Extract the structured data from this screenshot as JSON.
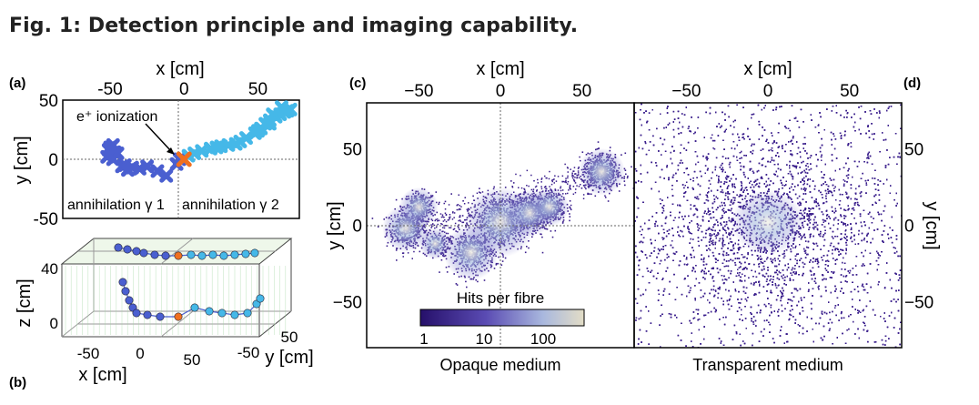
{
  "figure": {
    "title": "Fig. 1: Detection principle and imaging capability.",
    "colors": {
      "track_blue": "#4a5fd0",
      "track_cyan": "#45b8e8",
      "vertex": "#f07020",
      "hits": "#3a1e8c",
      "box_green": "#7fc07f"
    }
  },
  "panel_labels": {
    "a": "(a)",
    "b": "(b)",
    "c": "(c)",
    "d": "(d)"
  },
  "annotations": {
    "ionization": "e⁺ ionization",
    "gamma1": "annihilation γ 1",
    "gamma2": "annihilation γ 2"
  },
  "colorbar": {
    "title": "Hits per fibre",
    "ticks": [
      "1",
      "10",
      "100"
    ],
    "colors": [
      "#26106a",
      "#5a4bb3",
      "#a9b8de",
      "#e3ddc6"
    ]
  },
  "chart_data": [
    {
      "id": "a",
      "type": "scatter",
      "xlabel": "x [cm]",
      "ylabel": "y [cm]",
      "xticks": [
        "-50",
        "0",
        "50"
      ],
      "yticks": [
        "50",
        "0",
        "-50"
      ],
      "xtick_values": [
        -50,
        0,
        50
      ],
      "ytick_values": [
        50,
        0,
        -50
      ],
      "xlim": [
        -82,
        78
      ],
      "ylim": [
        -50,
        50
      ],
      "series": [
        {
          "color": "#4a5fd0",
          "x": [
            -48,
            -50,
            -51,
            -47,
            -45,
            -52,
            -48,
            -40,
            -35,
            -30,
            -25,
            -18,
            -12,
            -5,
            -3,
            -42,
            -38
          ],
          "y": [
            12,
            10,
            8,
            6,
            5,
            2,
            0,
            -5,
            -7,
            -8,
            -6,
            -10,
            -14,
            -4,
            0,
            -6,
            -9
          ]
        },
        {
          "color": "#45b8e8",
          "x": [
            3,
            7,
            12,
            18,
            22,
            25,
            30,
            35,
            38,
            42,
            48,
            52,
            55,
            58,
            62,
            65,
            68,
            70,
            72,
            66,
            60,
            58,
            50
          ],
          "y": [
            3,
            5,
            7,
            9,
            10,
            11,
            12,
            13,
            15,
            18,
            22,
            26,
            30,
            33,
            36,
            38,
            40,
            41,
            42,
            44,
            38,
            30,
            24
          ]
        },
        {
          "color": "#f07020",
          "x": [
            0
          ],
          "y": [
            0
          ]
        }
      ]
    },
    {
      "id": "b",
      "type": "scatter",
      "xlabel": "x [cm]",
      "ylabel": "z [cm]",
      "zlabel": "y [cm]",
      "xticks": [
        "-50",
        "0",
        "50"
      ],
      "zticks": [
        "40",
        "0"
      ],
      "yticks": [
        "-50",
        "50"
      ]
    },
    {
      "id": "c",
      "type": "scatter",
      "xlabel": "x [cm]",
      "ylabel": "y [cm]",
      "xticks": [
        "−50",
        "0",
        "50"
      ],
      "yticks": [
        "50",
        "0",
        "−50"
      ],
      "xtick_values": [
        -50,
        0,
        50
      ],
      "ytick_values": [
        50,
        0,
        -50
      ],
      "xlim": [
        -82,
        82
      ],
      "ylim": [
        -80,
        80
      ],
      "caption": "Opaque medium",
      "clusters": [
        {
          "x": -58,
          "y": -2,
          "n": 380,
          "s": 6
        },
        {
          "x": -50,
          "y": 12,
          "n": 300,
          "s": 5
        },
        {
          "x": -40,
          "y": -12,
          "n": 150,
          "s": 4
        },
        {
          "x": -18,
          "y": -18,
          "n": 450,
          "s": 7
        },
        {
          "x": 0,
          "y": 2,
          "n": 650,
          "s": 9
        },
        {
          "x": 18,
          "y": 8,
          "n": 380,
          "s": 6
        },
        {
          "x": 30,
          "y": 12,
          "n": 300,
          "s": 5
        },
        {
          "x": 62,
          "y": 35,
          "n": 500,
          "s": 6
        }
      ]
    },
    {
      "id": "d",
      "type": "scatter",
      "xlabel": "x [cm]",
      "ylabel": "y [cm]",
      "xticks": [
        "−50",
        "0",
        "50"
      ],
      "yticks": [
        "50",
        "0",
        "−50"
      ],
      "xtick_values": [
        -50,
        0,
        50
      ],
      "ytick_values": [
        50,
        0,
        -50
      ],
      "xlim": [
        -82,
        82
      ],
      "ylim": [
        -80,
        80
      ],
      "caption": "Transparent medium",
      "n_points": 9000
    }
  ]
}
